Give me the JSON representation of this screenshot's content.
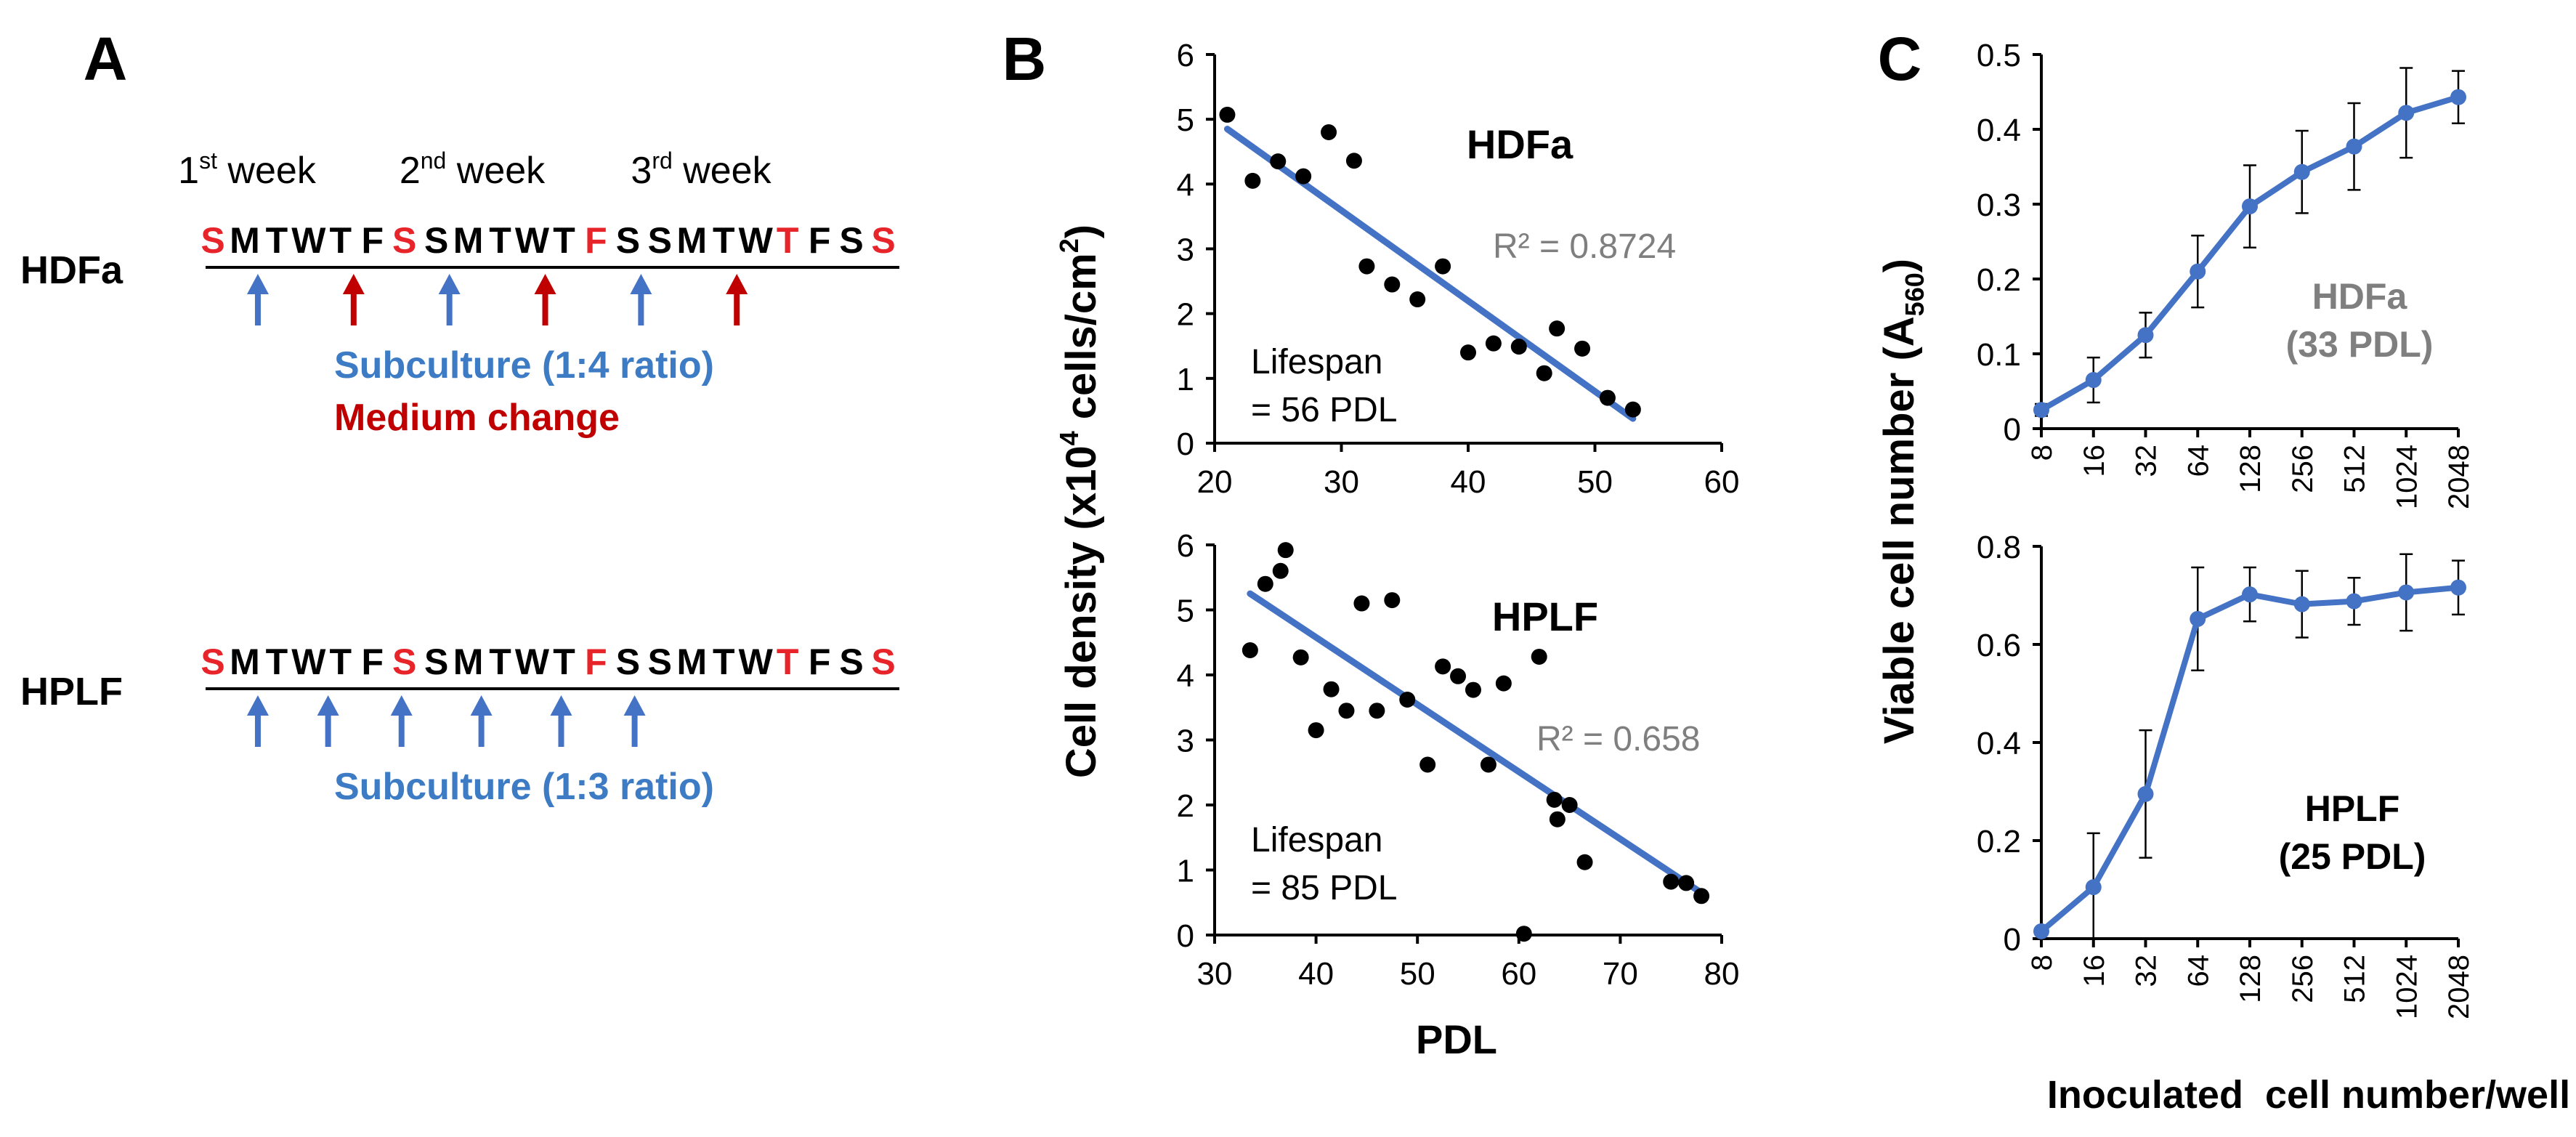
{
  "panels": {
    "a_label": "A",
    "b_label": "B",
    "c_label": "C"
  },
  "panel_a": {
    "week_labels": [
      {
        "num": "1",
        "sup": "st",
        "word": " week"
      },
      {
        "num": "2",
        "sup": "nd",
        "word": " week"
      },
      {
        "num": "3",
        "sup": "rd",
        "word": " week"
      }
    ],
    "day_letters": [
      "S",
      "M",
      "T",
      "W",
      "T",
      "F",
      "S",
      "S",
      "M",
      "T",
      "W",
      "T",
      "F",
      "S",
      "S",
      "M",
      "T",
      "W",
      "T",
      "F",
      "S",
      "S"
    ],
    "sunday_indices": [
      0,
      6,
      12,
      18
    ],
    "rows": [
      {
        "name": "HDFa",
        "arrows": [
          {
            "day": 1,
            "type": "subculture"
          },
          {
            "day": 4,
            "type": "medium"
          },
          {
            "day": 7,
            "type": "subculture"
          },
          {
            "day": 10,
            "type": "medium"
          },
          {
            "day": 13,
            "type": "subculture"
          },
          {
            "day": 16,
            "type": "medium"
          }
        ],
        "legend": [
          {
            "text": "Subculture (1:4 ratio)",
            "type": "subculture"
          },
          {
            "text": "Medium change",
            "type": "medium"
          }
        ]
      },
      {
        "name": "HPLF",
        "arrows": [
          {
            "day": 1,
            "type": "subculture"
          },
          {
            "day": 3.2,
            "type": "subculture"
          },
          {
            "day": 5.5,
            "type": "subculture"
          },
          {
            "day": 8,
            "type": "subculture"
          },
          {
            "day": 10.5,
            "type": "subculture"
          },
          {
            "day": 12.8,
            "type": "subculture"
          }
        ],
        "legend": [
          {
            "text": "Subculture (1:3 ratio)",
            "type": "subculture"
          }
        ]
      }
    ]
  },
  "colors": {
    "sunday_red": "#e8242b",
    "subculture_blue": "#4472c4",
    "subculture_text": "#3d7cc4",
    "medium_red": "#c00000",
    "series_blue": "#4472c4",
    "text_dark": "#000000",
    "r2_grey": "#7f7f7f"
  },
  "panel_b_ylabel": {
    "prefix": "Cell density (x10",
    "sup": "4",
    "middle": " cells/cm",
    "sup2": "2",
    "suffix": ")"
  },
  "panel_c_ylabel": {
    "prefix": "Viable cell number (A",
    "sub": "560",
    "suffix": ")"
  },
  "chart_data": [
    {
      "id": "b_top",
      "type": "scatter",
      "title": "HDFa",
      "r2_label": "R² = 0.8724",
      "lifespan_lines": [
        "Lifespan",
        "= 56 PDL"
      ],
      "xlim": [
        20,
        60
      ],
      "ylim": [
        0,
        6
      ],
      "xticks": [
        20,
        30,
        40,
        50,
        60
      ],
      "yticks": [
        0,
        1,
        2,
        3,
        4,
        5,
        6
      ],
      "xtick_labels": [
        "20",
        "30",
        "40",
        "50",
        "60"
      ],
      "ytick_labels": [
        "0",
        "1",
        "2",
        "3",
        "4",
        "5",
        "6"
      ],
      "points": [
        [
          21,
          5.07
        ],
        [
          23,
          4.05
        ],
        [
          25,
          4.35
        ],
        [
          27,
          4.12
        ],
        [
          29,
          4.8
        ],
        [
          31,
          4.36
        ],
        [
          32,
          2.73
        ],
        [
          34,
          2.45
        ],
        [
          36,
          2.22
        ],
        [
          38,
          2.73
        ],
        [
          40,
          1.4
        ],
        [
          42,
          1.54
        ],
        [
          44,
          1.49
        ],
        [
          46,
          1.08
        ],
        [
          47,
          1.77
        ],
        [
          49,
          1.46
        ],
        [
          51,
          0.7
        ],
        [
          53,
          0.52
        ]
      ],
      "trendline": [
        [
          21,
          4.85
        ],
        [
          53,
          0.38
        ]
      ]
    },
    {
      "id": "b_bottom",
      "type": "scatter",
      "title": "HPLF",
      "r2_label": "R² = 0.658",
      "lifespan_lines": [
        "Lifespan",
        "= 85 PDL"
      ],
      "xlabel": "PDL",
      "xlim": [
        30,
        80
      ],
      "ylim": [
        0,
        6
      ],
      "xticks": [
        30,
        40,
        50,
        60,
        70,
        80
      ],
      "yticks": [
        0,
        1,
        2,
        3,
        4,
        5,
        6
      ],
      "xtick_labels": [
        "30",
        "40",
        "50",
        "60",
        "70",
        "80"
      ],
      "ytick_labels": [
        "0",
        "1",
        "2",
        "3",
        "4",
        "5",
        "6"
      ],
      "points": [
        [
          33.5,
          4.38
        ],
        [
          35,
          5.4
        ],
        [
          36.5,
          5.6
        ],
        [
          37,
          5.92
        ],
        [
          38.5,
          4.27
        ],
        [
          40,
          3.15
        ],
        [
          41.5,
          3.78
        ],
        [
          43,
          3.45
        ],
        [
          44.5,
          5.1
        ],
        [
          46,
          3.45
        ],
        [
          47.5,
          5.15
        ],
        [
          49,
          3.62
        ],
        [
          51,
          2.62
        ],
        [
          52.5,
          4.13
        ],
        [
          54,
          3.98
        ],
        [
          55.5,
          3.77
        ],
        [
          57,
          2.62
        ],
        [
          58.5,
          3.87
        ],
        [
          60.5,
          0.02
        ],
        [
          62,
          4.28
        ],
        [
          63.5,
          2.08
        ],
        [
          63.8,
          1.78
        ],
        [
          65,
          2.0
        ],
        [
          66.5,
          1.12
        ],
        [
          75,
          0.82
        ],
        [
          76.5,
          0.8
        ],
        [
          78,
          0.6
        ]
      ],
      "trendline": [
        [
          33.5,
          5.25
        ],
        [
          78,
          0.65
        ]
      ]
    },
    {
      "id": "c_top",
      "type": "line",
      "title": "HDFa",
      "subtitle": "(33 PDL)",
      "categories": [
        "8",
        "16",
        "32",
        "64",
        "128",
        "256",
        "512",
        "1024",
        "2048"
      ],
      "values": [
        0.025,
        0.065,
        0.125,
        0.21,
        0.297,
        0.343,
        0.377,
        0.422,
        0.443
      ],
      "errors": [
        0.008,
        0.03,
        0.03,
        0.048,
        0.055,
        0.055,
        0.058,
        0.06,
        0.035
      ],
      "ylim": [
        0,
        0.5
      ],
      "yticks": [
        0,
        0.1,
        0.2,
        0.3,
        0.4,
        0.5
      ],
      "ytick_labels": [
        "0",
        "0.1",
        "0.2",
        "0.3",
        "0.4",
        "0.5"
      ]
    },
    {
      "id": "c_bottom",
      "type": "line",
      "title": "HPLF",
      "subtitle": "(25 PDL)",
      "xlabel": "Inoculated  cell number/well",
      "categories": [
        "8",
        "16",
        "32",
        "64",
        "128",
        "256",
        "512",
        "1024",
        "2048"
      ],
      "values": [
        0.015,
        0.105,
        0.295,
        0.652,
        0.702,
        0.682,
        0.688,
        0.706,
        0.716
      ],
      "errors": [
        0.005,
        0.11,
        0.13,
        0.105,
        0.055,
        0.068,
        0.048,
        0.078,
        0.055
      ],
      "ylim": [
        0,
        0.8
      ],
      "yticks": [
        0,
        0.2,
        0.4,
        0.6,
        0.8
      ],
      "ytick_labels": [
        "0",
        "0.2",
        "0.4",
        "0.6",
        "0.8"
      ]
    }
  ]
}
